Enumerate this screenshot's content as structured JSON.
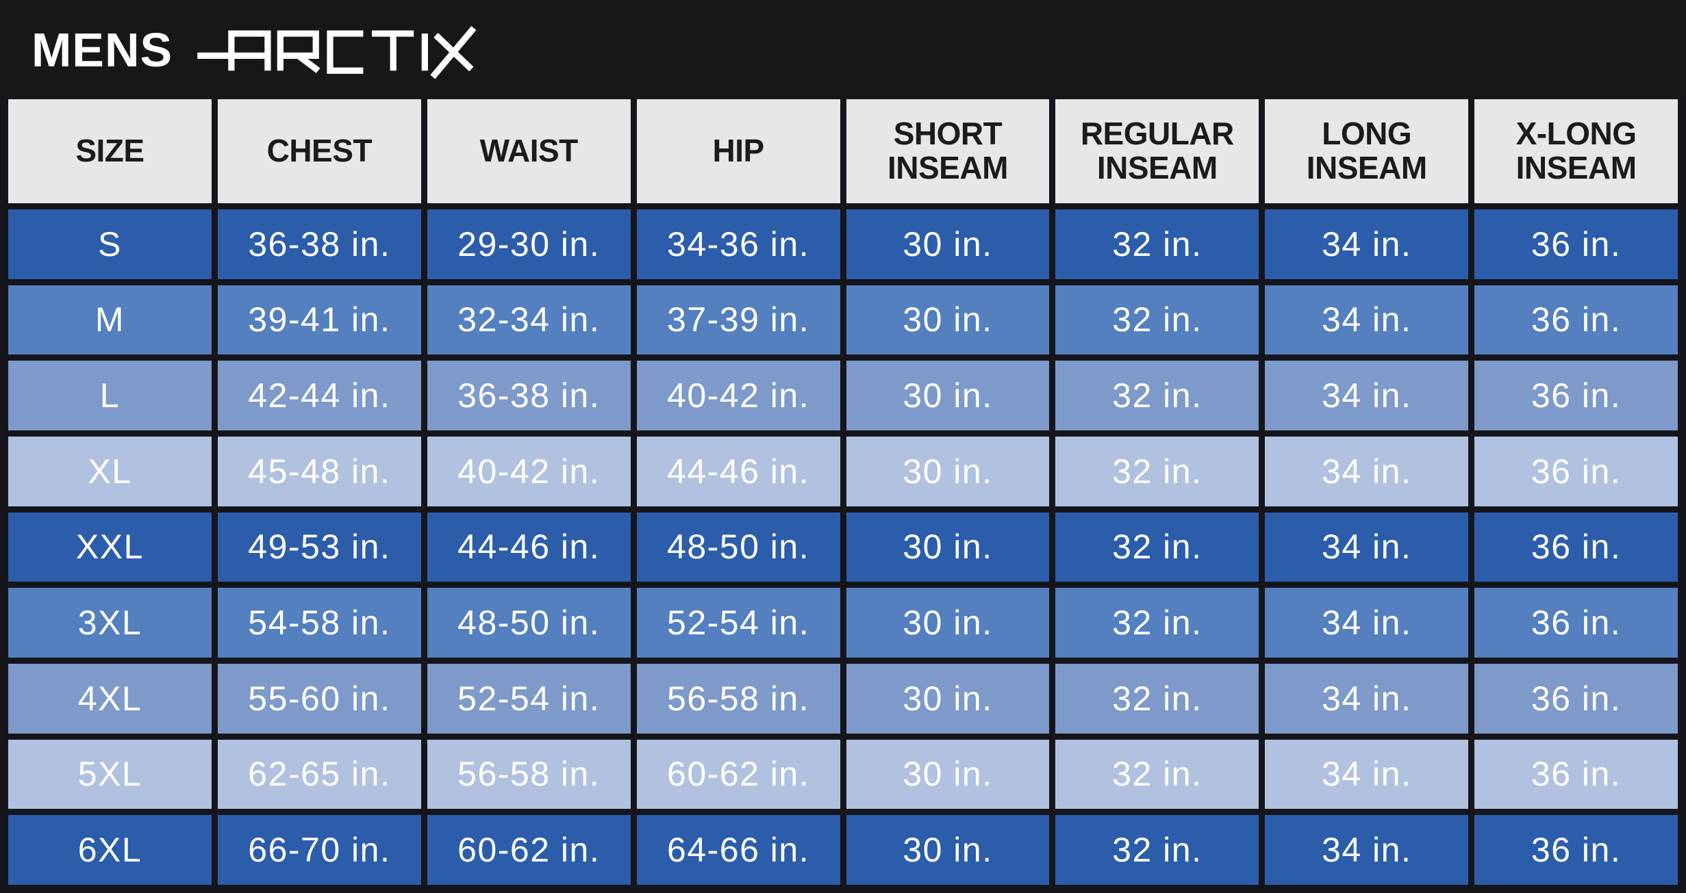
{
  "banner": {
    "brand_prefix": "MENS",
    "brand_logo": "ARCTIX"
  },
  "colors": {
    "banner_bg": "#191619",
    "grid_line": "#15151c",
    "header_cell_bg": "#e7e6e8",
    "header_text": "#1c1a1d",
    "cell_text": "#ffffff",
    "row_shades": [
      "#2c5dab",
      "#5480bf",
      "#7e9aca",
      "#b0c2df"
    ]
  },
  "chart_data": {
    "type": "table",
    "title": "MENS ARCTIX",
    "columns": [
      "SIZE",
      "CHEST",
      "WAIST",
      "HIP",
      "SHORT\nINSEAM",
      "REGULAR\nINSEAM",
      "LONG\nINSEAM",
      "X-LONG\nINSEAM"
    ],
    "rows": [
      {
        "shade": 0,
        "cells": [
          "S",
          "36-38 in.",
          "29-30 in.",
          "34-36 in.",
          "30 in.",
          "32 in.",
          "34 in.",
          "36 in."
        ]
      },
      {
        "shade": 1,
        "cells": [
          "M",
          "39-41 in.",
          "32-34 in.",
          "37-39 in.",
          "30 in.",
          "32 in.",
          "34 in.",
          "36 in."
        ]
      },
      {
        "shade": 2,
        "cells": [
          "L",
          "42-44 in.",
          "36-38 in.",
          "40-42 in.",
          "30 in.",
          "32 in.",
          "34 in.",
          "36 in."
        ]
      },
      {
        "shade": 3,
        "cells": [
          "XL",
          "45-48 in.",
          "40-42 in.",
          "44-46 in.",
          "30 in.",
          "32 in.",
          "34 in.",
          "36 in."
        ]
      },
      {
        "shade": 0,
        "cells": [
          "XXL",
          "49-53 in.",
          "44-46 in.",
          "48-50 in.",
          "30 in.",
          "32 in.",
          "34 in.",
          "36 in."
        ]
      },
      {
        "shade": 1,
        "cells": [
          "3XL",
          "54-58 in.",
          "48-50 in.",
          "52-54 in.",
          "30 in.",
          "32 in.",
          "34 in.",
          "36 in."
        ]
      },
      {
        "shade": 2,
        "cells": [
          "4XL",
          "55-60 in.",
          "52-54 in.",
          "56-58 in.",
          "30 in.",
          "32 in.",
          "34 in.",
          "36 in."
        ]
      },
      {
        "shade": 3,
        "cells": [
          "5XL",
          "62-65 in.",
          "56-58 in.",
          "60-62 in.",
          "30 in.",
          "32 in.",
          "34 in.",
          "36 in."
        ]
      },
      {
        "shade": 0,
        "cells": [
          "6XL",
          "66-70 in.",
          "60-62 in.",
          "64-66 in.",
          "30 in.",
          "32 in.",
          "34 in.",
          "36 in."
        ]
      }
    ]
  }
}
